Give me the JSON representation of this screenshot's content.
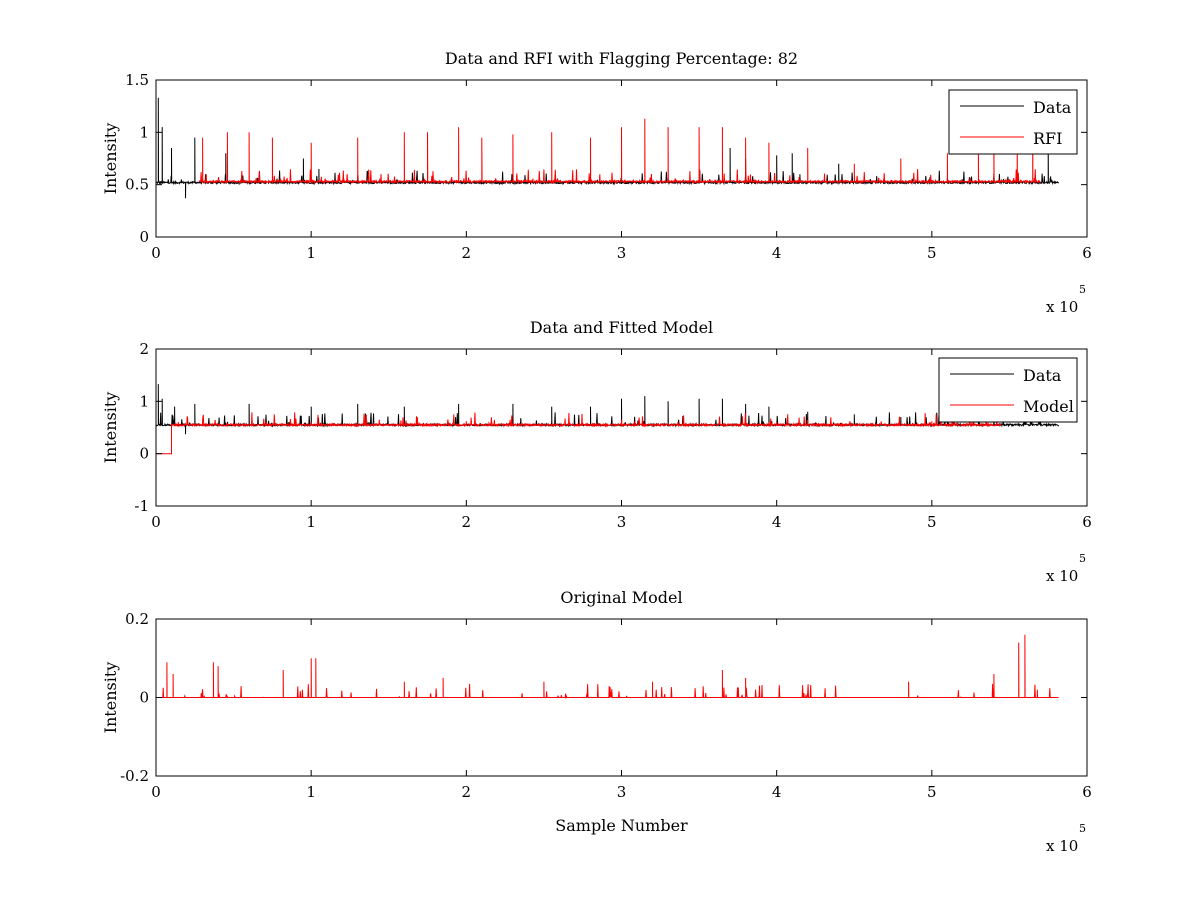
{
  "chart_data": [
    {
      "type": "line",
      "title": "Data and RFI with Flagging Percentage: 82",
      "xlabel": "",
      "ylabel": "Intensity",
      "xlim": [
        0,
        600000
      ],
      "ylim": [
        0,
        1.5
      ],
      "x_ticks": [
        "0",
        "1",
        "2",
        "3",
        "4",
        "5",
        "6"
      ],
      "y_ticks": [
        "0",
        "0.5",
        "1",
        "1.5"
      ],
      "x_exponent": {
        "base": "x 10",
        "power": "5"
      },
      "legend": {
        "position": "top-right",
        "entries": [
          "Data",
          "RFI"
        ]
      },
      "grid": false,
      "series": [
        {
          "name": "Data",
          "color": "#000000",
          "x_range": [
            0,
            582000
          ],
          "baseline": 0.52,
          "peaks": [
            [
              1500,
              1.33
            ],
            [
              4000,
              1.05
            ],
            [
              10000,
              0.85
            ],
            [
              19000,
              0.37
            ],
            [
              25000,
              0.95
            ],
            [
              45000,
              0.8
            ],
            [
              95000,
              0.75
            ],
            [
              105000,
              0.65
            ],
            [
              370000,
              0.85
            ],
            [
              380000,
              0.75
            ],
            [
              400000,
              0.78
            ],
            [
              410000,
              0.8
            ],
            [
              415000,
              0.6
            ],
            [
              440000,
              0.7
            ],
            [
              575000,
              0.9
            ],
            [
              582000,
              0.55
            ]
          ]
        },
        {
          "name": "RFI",
          "color": "#ff0000",
          "x_range": [
            28000,
            570000
          ],
          "baseline": 0.53,
          "peaks": [
            [
              30000,
              0.95
            ],
            [
              46000,
              1.0
            ],
            [
              60000,
              1.0
            ],
            [
              75000,
              0.95
            ],
            [
              100000,
              0.9
            ],
            [
              130000,
              0.95
            ],
            [
              160000,
              1.0
            ],
            [
              175000,
              1.0
            ],
            [
              195000,
              1.05
            ],
            [
              210000,
              0.95
            ],
            [
              230000,
              0.98
            ],
            [
              255000,
              1.0
            ],
            [
              280000,
              0.95
            ],
            [
              300000,
              1.05
            ],
            [
              315000,
              1.13
            ],
            [
              330000,
              1.05
            ],
            [
              350000,
              1.05
            ],
            [
              365000,
              1.05
            ],
            [
              380000,
              0.95
            ],
            [
              395000,
              0.9
            ],
            [
              420000,
              0.85
            ],
            [
              450000,
              0.7
            ],
            [
              480000,
              0.75
            ],
            [
              510000,
              0.8
            ],
            [
              530000,
              0.9
            ],
            [
              540000,
              0.95
            ],
            [
              555000,
              1.0
            ],
            [
              565000,
              1.1
            ]
          ]
        }
      ]
    },
    {
      "type": "line",
      "title": "Data and Fitted Model",
      "xlabel": "",
      "ylabel": "Intensity",
      "xlim": [
        0,
        600000
      ],
      "ylim": [
        -1,
        2
      ],
      "x_ticks": [
        "0",
        "1",
        "2",
        "3",
        "4",
        "5",
        "6"
      ],
      "y_ticks": [
        "-1",
        "0",
        "1",
        "2"
      ],
      "x_exponent": {
        "base": "x 10",
        "power": "5"
      },
      "legend": {
        "position": "top-right",
        "entries": [
          "Data",
          "Model"
        ]
      },
      "grid": false,
      "series": [
        {
          "name": "Data",
          "color": "#000000",
          "x_range": [
            0,
            582000
          ],
          "baseline": 0.55,
          "peaks": [
            [
              1500,
              1.33
            ],
            [
              4000,
              1.05
            ],
            [
              12000,
              0.9
            ],
            [
              19000,
              0.37
            ],
            [
              25000,
              0.95
            ],
            [
              60000,
              0.95
            ],
            [
              100000,
              0.9
            ],
            [
              130000,
              0.95
            ],
            [
              160000,
              0.9
            ],
            [
              195000,
              0.95
            ],
            [
              230000,
              0.95
            ],
            [
              255000,
              0.9
            ],
            [
              280000,
              0.9
            ],
            [
              300000,
              1.05
            ],
            [
              315000,
              1.1
            ],
            [
              330000,
              1.0
            ],
            [
              350000,
              1.05
            ],
            [
              365000,
              1.05
            ],
            [
              380000,
              0.95
            ],
            [
              395000,
              0.9
            ],
            [
              420000,
              0.8
            ],
            [
              450000,
              0.75
            ],
            [
              480000,
              0.7
            ],
            [
              510000,
              0.75
            ],
            [
              540000,
              0.7
            ],
            [
              570000,
              0.7
            ]
          ]
        },
        {
          "name": "Model",
          "color": "#ff0000",
          "x_range": [
            0,
            545000
          ],
          "baseline": 0.55,
          "step": [
            [
              0,
              0.0
            ],
            [
              10000,
              0.0
            ],
            [
              10000,
              0.55
            ]
          ],
          "peaks": [
            [
              100000,
              0.6
            ],
            [
              200000,
              0.62
            ],
            [
              300000,
              0.65
            ],
            [
              400000,
              0.6
            ],
            [
              500000,
              0.62
            ]
          ]
        }
      ]
    },
    {
      "type": "line",
      "title": "Original Model",
      "xlabel": "Sample Number",
      "ylabel": "Intensity",
      "xlim": [
        0,
        600000
      ],
      "ylim": [
        -0.2,
        0.2
      ],
      "x_ticks": [
        "0",
        "1",
        "2",
        "3",
        "4",
        "5",
        "6"
      ],
      "y_ticks": [
        "-0.2",
        "0",
        "0.2"
      ],
      "x_exponent": {
        "base": "x 10",
        "power": "5"
      },
      "legend": null,
      "grid": false,
      "series": [
        {
          "name": "",
          "color": "#ff0000",
          "x_range": [
            0,
            582000
          ],
          "baseline": 0.0,
          "peaks": [
            [
              7000,
              0.09
            ],
            [
              11000,
              0.06
            ],
            [
              37000,
              0.09
            ],
            [
              40000,
              0.08
            ],
            [
              82000,
              0.07
            ],
            [
              100000,
              0.1
            ],
            [
              103000,
              0.1
            ],
            [
              160000,
              0.04
            ],
            [
              185000,
              0.05
            ],
            [
              250000,
              0.04
            ],
            [
              320000,
              0.04
            ],
            [
              365000,
              0.07
            ],
            [
              380000,
              0.05
            ],
            [
              485000,
              0.04
            ],
            [
              540000,
              0.06
            ],
            [
              556000,
              0.14
            ],
            [
              560000,
              0.16
            ],
            [
              568000,
              0.02
            ]
          ]
        }
      ]
    }
  ]
}
